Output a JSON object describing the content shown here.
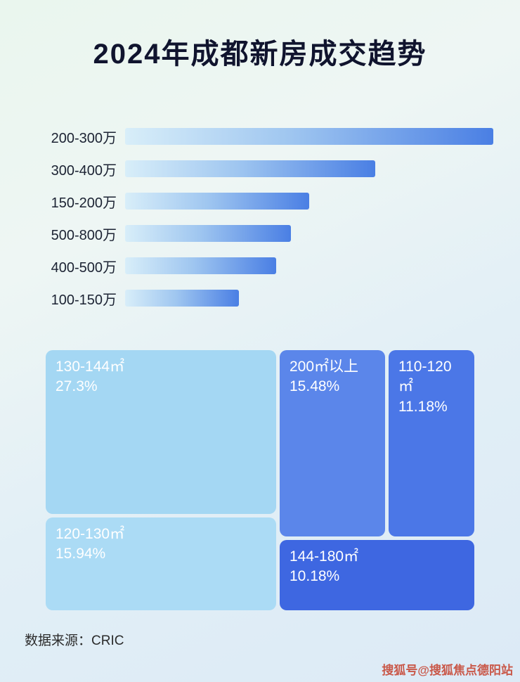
{
  "page": {
    "title": "2024年成都新房成交趋势",
    "source_note": "数据来源：CRIC",
    "watermark": "搜狐号@搜狐焦点德阳站"
  },
  "chart_data": [
    {
      "type": "bar",
      "orientation": "horizontal",
      "title": "2024年成都新房成交趋势",
      "categories": [
        "200-300万",
        "300-400万",
        "150-200万",
        "500-800万",
        "400-500万",
        "100-150万"
      ],
      "values": [
        100,
        68,
        50,
        45,
        41,
        31
      ],
      "value_unit": "relative bar length, % of longest bar (no numeric axis shown)",
      "bar_gradient": [
        "#d8eef9",
        "#4a7fe4"
      ],
      "legend": "none",
      "grid": false
    },
    {
      "type": "treemap",
      "items": [
        {
          "label": "130-144㎡",
          "value": "27.3%",
          "color": "#a4d7f3"
        },
        {
          "label": "120-130㎡",
          "value": "15.94%",
          "color": "#abdbf5"
        },
        {
          "label": "200㎡以上",
          "value": "15.48%",
          "color": "#5b86ea"
        },
        {
          "label": "110-120㎡",
          "value": "11.18%",
          "color": "#4b77e7"
        },
        {
          "label": "144-180㎡",
          "value": "10.18%",
          "color": "#3e67e1"
        }
      ]
    }
  ],
  "colors": {
    "background_top": "#eaf6ee",
    "background_bottom": "#dceaf6",
    "title_text": "#10142e",
    "bar_label_text": "#1c2333",
    "treemap_text": "#ffffff",
    "watermark_text": "#c63e2a"
  }
}
